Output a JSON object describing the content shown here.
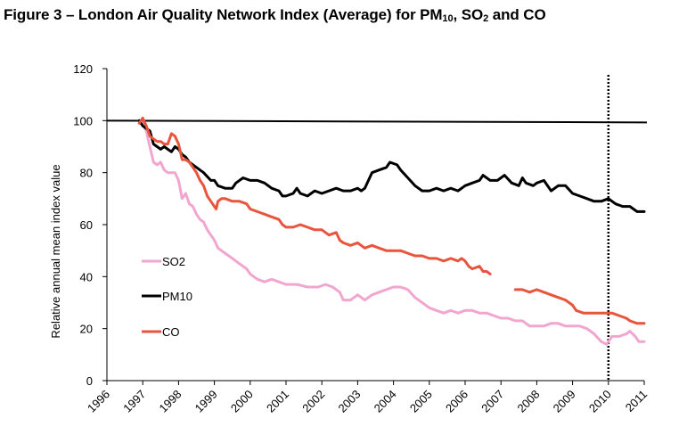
{
  "title": {
    "prefix": "Figure 3 – London Air Quality Network Index (Average) for PM",
    "pm_sub": "10",
    "middle": ", SO",
    "so_sub": "2",
    "suffix": " and CO"
  },
  "chart_data": {
    "type": "line",
    "ylabel": "Relative annual mean index value",
    "xlabel": "",
    "ylim": [
      0,
      120
    ],
    "y_ticks": [
      0,
      20,
      40,
      60,
      80,
      100,
      120
    ],
    "xlim": [
      1996,
      2011
    ],
    "x_tick_labels": [
      "1996",
      "1997",
      "1998",
      "1999",
      "2000",
      "2001",
      "2002",
      "2003",
      "2004",
      "2005",
      "2006",
      "2007",
      "2008",
      "2009",
      "2010",
      "2011"
    ],
    "reference_line": 100,
    "vertical_marker": {
      "x": 2010,
      "style": "dotted"
    },
    "legend_position": "left, inside plot",
    "series": [
      {
        "name": "SO2",
        "color": "#f2a6cf",
        "segments": [
          [
            [
              1996.9,
              100
            ],
            [
              1997.0,
              99
            ],
            [
              1997.1,
              96
            ],
            [
              1997.2,
              90
            ],
            [
              1997.3,
              84
            ],
            [
              1997.4,
              83
            ],
            [
              1997.5,
              84
            ],
            [
              1997.6,
              81
            ],
            [
              1997.7,
              80
            ],
            [
              1997.8,
              80
            ],
            [
              1997.9,
              80
            ],
            [
              1998.0,
              77
            ],
            [
              1998.1,
              70
            ],
            [
              1998.2,
              72
            ],
            [
              1998.3,
              68
            ],
            [
              1998.4,
              67
            ],
            [
              1998.5,
              64
            ],
            [
              1998.6,
              62
            ],
            [
              1998.7,
              61
            ],
            [
              1998.8,
              58
            ],
            [
              1998.9,
              56
            ],
            [
              1999.0,
              54
            ],
            [
              1999.1,
              51
            ],
            [
              1999.2,
              50
            ],
            [
              1999.3,
              49
            ],
            [
              1999.5,
              47
            ],
            [
              1999.7,
              45
            ],
            [
              1999.9,
              43
            ],
            [
              2000.0,
              41
            ],
            [
              2000.2,
              39
            ],
            [
              2000.4,
              38
            ],
            [
              2000.6,
              39
            ],
            [
              2000.8,
              38
            ],
            [
              2001.0,
              37
            ],
            [
              2001.3,
              37
            ],
            [
              2001.6,
              36
            ],
            [
              2001.9,
              36
            ],
            [
              2002.1,
              37
            ],
            [
              2002.3,
              36
            ],
            [
              2002.5,
              34
            ],
            [
              2002.6,
              31
            ],
            [
              2002.8,
              31
            ],
            [
              2003.0,
              33
            ],
            [
              2003.2,
              31
            ],
            [
              2003.4,
              33
            ],
            [
              2003.6,
              34
            ],
            [
              2003.8,
              35
            ],
            [
              2004.0,
              36
            ],
            [
              2004.2,
              36
            ],
            [
              2004.4,
              35
            ],
            [
              2004.6,
              32
            ],
            [
              2004.8,
              30
            ],
            [
              2005.0,
              28
            ],
            [
              2005.2,
              27
            ],
            [
              2005.4,
              26
            ],
            [
              2005.6,
              27
            ],
            [
              2005.8,
              26
            ],
            [
              2006.0,
              27
            ],
            [
              2006.2,
              27
            ],
            [
              2006.4,
              26
            ],
            [
              2006.6,
              26
            ],
            [
              2006.8,
              25
            ],
            [
              2007.0,
              24
            ],
            [
              2007.2,
              24
            ],
            [
              2007.4,
              23
            ],
            [
              2007.6,
              23
            ],
            [
              2007.8,
              21
            ],
            [
              2008.0,
              21
            ],
            [
              2008.2,
              21
            ],
            [
              2008.4,
              22
            ],
            [
              2008.6,
              22
            ],
            [
              2008.8,
              21
            ],
            [
              2009.0,
              21
            ],
            [
              2009.2,
              21
            ],
            [
              2009.4,
              20
            ],
            [
              2009.6,
              18
            ],
            [
              2009.8,
              15
            ],
            [
              2009.95,
              14
            ],
            [
              2010.1,
              17
            ],
            [
              2010.3,
              17
            ],
            [
              2010.5,
              18
            ],
            [
              2010.6,
              19
            ],
            [
              2010.75,
              17
            ],
            [
              2010.85,
              15
            ],
            [
              2011.0,
              15
            ]
          ]
        ]
      },
      {
        "name": "PM10",
        "color": "#000000",
        "segments": [
          [
            [
              1996.9,
              100
            ],
            [
              1997.0,
              98
            ],
            [
              1997.1,
              97
            ],
            [
              1997.2,
              96
            ],
            [
              1997.3,
              91
            ],
            [
              1997.4,
              90
            ],
            [
              1997.5,
              89
            ],
            [
              1997.6,
              90
            ],
            [
              1997.7,
              89
            ],
            [
              1997.8,
              88
            ],
            [
              1997.9,
              90
            ],
            [
              1998.0,
              89
            ],
            [
              1998.1,
              87
            ],
            [
              1998.2,
              86
            ],
            [
              1998.3,
              84
            ],
            [
              1998.5,
              82
            ],
            [
              1998.7,
              80
            ],
            [
              1998.9,
              77
            ],
            [
              1999.0,
              77
            ],
            [
              1999.1,
              75
            ],
            [
              1999.3,
              74
            ],
            [
              1999.5,
              74
            ],
            [
              1999.6,
              76
            ],
            [
              1999.8,
              78
            ],
            [
              2000.0,
              77
            ],
            [
              2000.2,
              77
            ],
            [
              2000.4,
              76
            ],
            [
              2000.6,
              74
            ],
            [
              2000.8,
              73
            ],
            [
              2000.9,
              71
            ],
            [
              2001.0,
              71
            ],
            [
              2001.2,
              72
            ],
            [
              2001.3,
              74
            ],
            [
              2001.4,
              72
            ],
            [
              2001.6,
              71
            ],
            [
              2001.8,
              73
            ],
            [
              2002.0,
              72
            ],
            [
              2002.2,
              73
            ],
            [
              2002.4,
              74
            ],
            [
              2002.6,
              73
            ],
            [
              2002.8,
              73
            ],
            [
              2003.0,
              74
            ],
            [
              2003.1,
              73
            ],
            [
              2003.2,
              74
            ],
            [
              2003.3,
              77
            ],
            [
              2003.4,
              80
            ],
            [
              2003.6,
              81
            ],
            [
              2003.8,
              82
            ],
            [
              2003.9,
              84
            ],
            [
              2004.1,
              83
            ],
            [
              2004.2,
              81
            ],
            [
              2004.4,
              78
            ],
            [
              2004.6,
              75
            ],
            [
              2004.8,
              73
            ],
            [
              2005.0,
              73
            ],
            [
              2005.2,
              74
            ],
            [
              2005.4,
              73
            ],
            [
              2005.6,
              74
            ],
            [
              2005.8,
              73
            ],
            [
              2006.0,
              75
            ],
            [
              2006.2,
              76
            ],
            [
              2006.4,
              77
            ],
            [
              2006.5,
              79
            ],
            [
              2006.7,
              77
            ],
            [
              2006.9,
              77
            ],
            [
              2007.1,
              79
            ],
            [
              2007.3,
              76
            ],
            [
              2007.5,
              75
            ],
            [
              2007.6,
              78
            ],
            [
              2007.7,
              76
            ],
            [
              2007.9,
              75
            ],
            [
              2008.0,
              76
            ],
            [
              2008.2,
              77
            ],
            [
              2008.4,
              73
            ],
            [
              2008.6,
              75
            ],
            [
              2008.8,
              75
            ],
            [
              2009.0,
              72
            ],
            [
              2009.2,
              71
            ],
            [
              2009.4,
              70
            ],
            [
              2009.6,
              69
            ],
            [
              2009.8,
              69
            ],
            [
              2010.0,
              70
            ],
            [
              2010.2,
              68
            ],
            [
              2010.4,
              67
            ],
            [
              2010.6,
              67
            ],
            [
              2010.8,
              65
            ],
            [
              2011.0,
              65
            ]
          ]
        ]
      },
      {
        "name": "CO",
        "color": "#e8553d",
        "segments": [
          [
            [
              1996.9,
              99
            ],
            [
              1997.0,
              101
            ],
            [
              1997.1,
              98
            ],
            [
              1997.2,
              94
            ],
            [
              1997.3,
              93
            ],
            [
              1997.4,
              92
            ],
            [
              1997.5,
              92
            ],
            [
              1997.6,
              91
            ],
            [
              1997.7,
              91
            ],
            [
              1997.8,
              95
            ],
            [
              1997.9,
              94
            ],
            [
              1998.0,
              91
            ],
            [
              1998.1,
              85
            ],
            [
              1998.2,
              85
            ],
            [
              1998.3,
              84
            ],
            [
              1998.4,
              82
            ],
            [
              1998.5,
              80
            ],
            [
              1998.6,
              77
            ],
            [
              1998.7,
              75
            ],
            [
              1998.8,
              71
            ],
            [
              1998.9,
              69
            ],
            [
              1999.0,
              67
            ],
            [
              1999.05,
              66
            ],
            [
              1999.1,
              69
            ],
            [
              1999.2,
              70
            ],
            [
              1999.3,
              70
            ],
            [
              1999.5,
              69
            ],
            [
              1999.7,
              69
            ],
            [
              1999.9,
              68
            ],
            [
              2000.0,
              66
            ],
            [
              2000.2,
              65
            ],
            [
              2000.4,
              64
            ],
            [
              2000.6,
              63
            ],
            [
              2000.8,
              62
            ],
            [
              2000.9,
              60
            ],
            [
              2001.0,
              59
            ],
            [
              2001.2,
              59
            ],
            [
              2001.4,
              60
            ],
            [
              2001.6,
              59
            ],
            [
              2001.8,
              58
            ],
            [
              2002.0,
              58
            ],
            [
              2002.2,
              56
            ],
            [
              2002.4,
              57
            ],
            [
              2002.5,
              54
            ],
            [
              2002.6,
              53
            ],
            [
              2002.8,
              52
            ],
            [
              2003.0,
              53
            ],
            [
              2003.2,
              51
            ],
            [
              2003.4,
              52
            ],
            [
              2003.6,
              51
            ],
            [
              2003.8,
              50
            ],
            [
              2004.0,
              50
            ],
            [
              2004.2,
              50
            ],
            [
              2004.4,
              49
            ],
            [
              2004.6,
              48
            ],
            [
              2004.8,
              48
            ],
            [
              2005.0,
              47
            ],
            [
              2005.2,
              47
            ],
            [
              2005.4,
              46
            ],
            [
              2005.6,
              47
            ],
            [
              2005.8,
              46
            ],
            [
              2005.9,
              47
            ],
            [
              2006.0,
              46
            ],
            [
              2006.1,
              44
            ],
            [
              2006.2,
              43
            ],
            [
              2006.4,
              44
            ],
            [
              2006.5,
              42
            ],
            [
              2006.6,
              42
            ],
            [
              2006.7,
              41
            ]
          ],
          [
            [
              2007.4,
              35
            ],
            [
              2007.6,
              35
            ],
            [
              2007.8,
              34
            ],
            [
              2008.0,
              35
            ],
            [
              2008.2,
              34
            ],
            [
              2008.4,
              33
            ],
            [
              2008.6,
              32
            ],
            [
              2008.8,
              31
            ],
            [
              2009.0,
              29
            ],
            [
              2009.1,
              27
            ],
            [
              2009.3,
              26
            ],
            [
              2009.5,
              26
            ],
            [
              2009.7,
              26
            ],
            [
              2009.9,
              26
            ],
            [
              2010.1,
              26
            ],
            [
              2010.3,
              25
            ],
            [
              2010.5,
              24
            ],
            [
              2010.6,
              23
            ],
            [
              2010.8,
              22
            ],
            [
              2011.0,
              22
            ]
          ]
        ]
      }
    ]
  }
}
